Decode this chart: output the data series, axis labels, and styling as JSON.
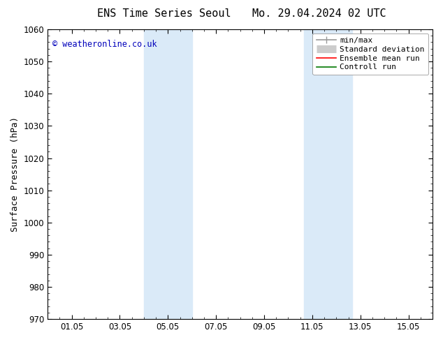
{
  "title_left": "ENS Time Series Seoul",
  "title_right": "Mo. 29.04.2024 02 UTC",
  "ylabel": "Surface Pressure (hPa)",
  "ylim": [
    970,
    1060
  ],
  "yticks": [
    970,
    980,
    990,
    1000,
    1010,
    1020,
    1030,
    1040,
    1050,
    1060
  ],
  "xlim_start": 0.0,
  "xlim_end": 16.0,
  "xtick_positions": [
    1,
    3,
    5,
    7,
    9,
    11,
    13,
    15
  ],
  "xtick_labels": [
    "01.05",
    "03.05",
    "05.05",
    "07.05",
    "09.05",
    "11.05",
    "13.05",
    "15.05"
  ],
  "shaded_bands": [
    {
      "x_start": 4.0,
      "x_end": 6.0
    },
    {
      "x_start": 10.667,
      "x_end": 12.667
    }
  ],
  "shaded_band_color": "#daeaf8",
  "background_color": "#ffffff",
  "plot_bg_color": "#ffffff",
  "copyright_text": "© weatheronline.co.uk",
  "copyright_color": "#0000bb",
  "copyright_fontsize": 8.5,
  "legend_entries": [
    {
      "label": "min/max",
      "color": "#999999",
      "lw": 1.2,
      "linestyle": "-"
    },
    {
      "label": "Standard deviation",
      "color": "#cccccc",
      "lw": 5,
      "linestyle": "-"
    },
    {
      "label": "Ensemble mean run",
      "color": "#ff0000",
      "lw": 1.2,
      "linestyle": "-"
    },
    {
      "label": "Controll run",
      "color": "#007700",
      "lw": 1.2,
      "linestyle": "-"
    }
  ],
  "title_fontsize": 11,
  "axis_label_fontsize": 9,
  "tick_fontsize": 8.5,
  "legend_fontsize": 8
}
